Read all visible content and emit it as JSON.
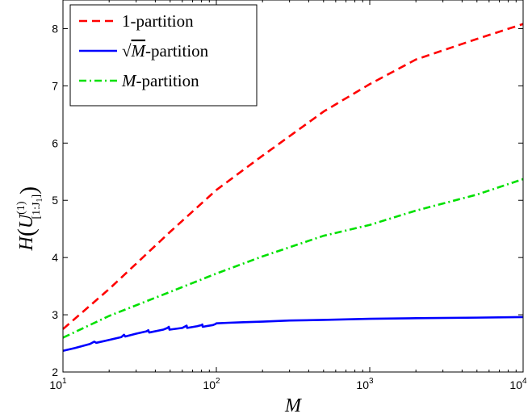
{
  "chart_data": {
    "type": "line",
    "xscale": "log",
    "xlim": [
      10,
      10000
    ],
    "ylim": [
      2,
      8.5
    ],
    "xticks": [
      {
        "value": 10,
        "base": "10",
        "exp": "1"
      },
      {
        "value": 100,
        "base": "10",
        "exp": "2"
      },
      {
        "value": 1000,
        "base": "10",
        "exp": "3"
      },
      {
        "value": 10000,
        "base": "10",
        "exp": "4"
      }
    ],
    "yticks": [
      2,
      3,
      4,
      5,
      6,
      7,
      8
    ],
    "xlabel": "M",
    "ylabel": {
      "prefix": "H",
      "var": "U",
      "sup": "(1)",
      "sub": "[1:J",
      "sub2": "1",
      "sub_end": "]"
    },
    "legend_position": "top-left",
    "grid": false,
    "series": [
      {
        "name": "1-partition",
        "color": "#ff0000",
        "style": "dashed",
        "x": [
          10,
          20,
          50,
          100,
          200,
          500,
          1000,
          2000,
          5000,
          10000
        ],
        "values": [
          2.75,
          3.45,
          4.45,
          5.18,
          5.78,
          6.55,
          7.03,
          7.46,
          7.82,
          8.08
        ]
      },
      {
        "name": "√M-partition",
        "legend_prefix": "√",
        "legend_var": "M",
        "legend_suffix": "-partition",
        "color": "#0000ff",
        "style": "solid",
        "x": [
          10,
          12,
          15,
          16,
          16.5,
          20,
          24,
          25,
          25.5,
          30,
          35,
          36,
          36.5,
          45,
          48,
          49,
          49.5,
          60,
          63,
          64,
          64.5,
          75,
          80,
          81,
          81.5,
          95,
          99,
          100,
          120,
          150,
          200,
          300,
          500,
          1000,
          2000,
          5000,
          10000
        ],
        "values": [
          2.37,
          2.42,
          2.49,
          2.53,
          2.51,
          2.56,
          2.61,
          2.65,
          2.62,
          2.67,
          2.71,
          2.73,
          2.69,
          2.74,
          2.77,
          2.79,
          2.74,
          2.77,
          2.8,
          2.81,
          2.77,
          2.8,
          2.82,
          2.83,
          2.79,
          2.82,
          2.84,
          2.85,
          2.86,
          2.87,
          2.88,
          2.9,
          2.91,
          2.93,
          2.94,
          2.95,
          2.96
        ]
      },
      {
        "name": "M-partition",
        "legend_prefix": "",
        "legend_var": "M",
        "legend_suffix": "-partition",
        "color": "#00e000",
        "style": "dashdot",
        "x": [
          10,
          20,
          50,
          100,
          200,
          500,
          1000,
          2000,
          5000,
          10000
        ],
        "values": [
          2.6,
          2.98,
          3.4,
          3.72,
          4.02,
          4.38,
          4.57,
          4.82,
          5.1,
          5.37
        ]
      }
    ]
  }
}
